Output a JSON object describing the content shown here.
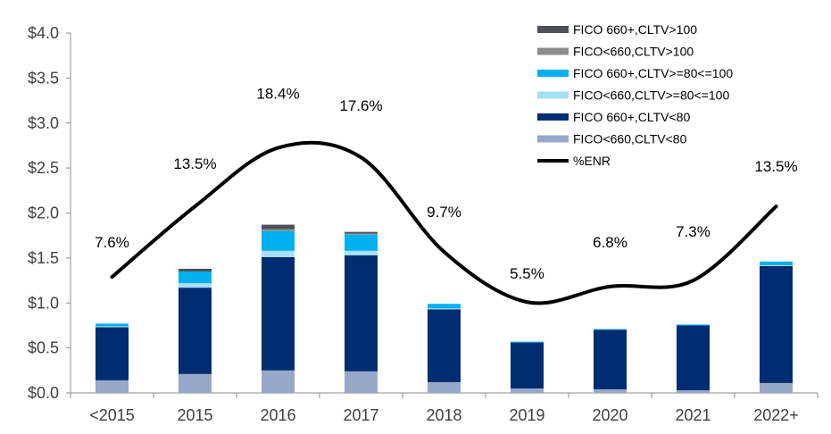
{
  "chart_data": {
    "type": "bar",
    "stacked": true,
    "categories": [
      "<2015",
      "2015",
      "2016",
      "2017",
      "2018",
      "2019",
      "2020",
      "2021",
      "2022+"
    ],
    "ylim": [
      0,
      4.0
    ],
    "yticks": [
      "$0.0",
      "$0.5",
      "$1.0",
      "$1.5",
      "$2.0",
      "$2.5",
      "$3.0",
      "$3.5",
      "$4.0"
    ],
    "ytick_values": [
      0,
      0.5,
      1.0,
      1.5,
      2.0,
      2.5,
      3.0,
      3.5,
      4.0
    ],
    "grid": false,
    "legend_position": "top-right",
    "series": [
      {
        "name": "FICO<660,CLTV<80",
        "color": "#97a8c8",
        "values": [
          0.14,
          0.21,
          0.25,
          0.24,
          0.12,
          0.05,
          0.04,
          0.03,
          0.11
        ]
      },
      {
        "name": "FICO 660+,CLTV<80",
        "color": "#002d72",
        "values": [
          0.59,
          0.96,
          1.26,
          1.29,
          0.81,
          0.51,
          0.66,
          0.72,
          1.3
        ]
      },
      {
        "name": "FICO<660,CLTV>=80<=100",
        "color": "#a6e0f7",
        "values": [
          0.01,
          0.05,
          0.07,
          0.05,
          0.01,
          0.0,
          0.0,
          0.0,
          0.01
        ]
      },
      {
        "name": "FICO 660+,CLTV>=80<=100",
        "color": "#00b0f0",
        "values": [
          0.03,
          0.13,
          0.22,
          0.18,
          0.05,
          0.01,
          0.01,
          0.01,
          0.04
        ]
      },
      {
        "name": "FICO<660,CLTV>100",
        "color": "#8c8c8c",
        "values": [
          0.0,
          0.0,
          0.02,
          0.01,
          0.0,
          0.0,
          0.0,
          0.0,
          0.0
        ]
      },
      {
        "name": "FICO 660+,CLTV>100",
        "color": "#4d5057",
        "values": [
          0.0,
          0.03,
          0.05,
          0.02,
          0.0,
          0.0,
          0.0,
          0.0,
          0.0
        ]
      }
    ],
    "line_series": {
      "name": "%ENR",
      "color": "#000000",
      "axis": "secondary (hidden)",
      "y2lim": [
        -2.1,
        28
      ],
      "smooth": true,
      "values": [
        7.6,
        13.5,
        18.4,
        17.6,
        9.7,
        5.5,
        6.8,
        7.3,
        13.5
      ],
      "labels": [
        "7.6%",
        "13.5%",
        "18.4%",
        "17.6%",
        "9.7%",
        "5.5%",
        "6.8%",
        "7.3%",
        "13.5%"
      ]
    }
  }
}
